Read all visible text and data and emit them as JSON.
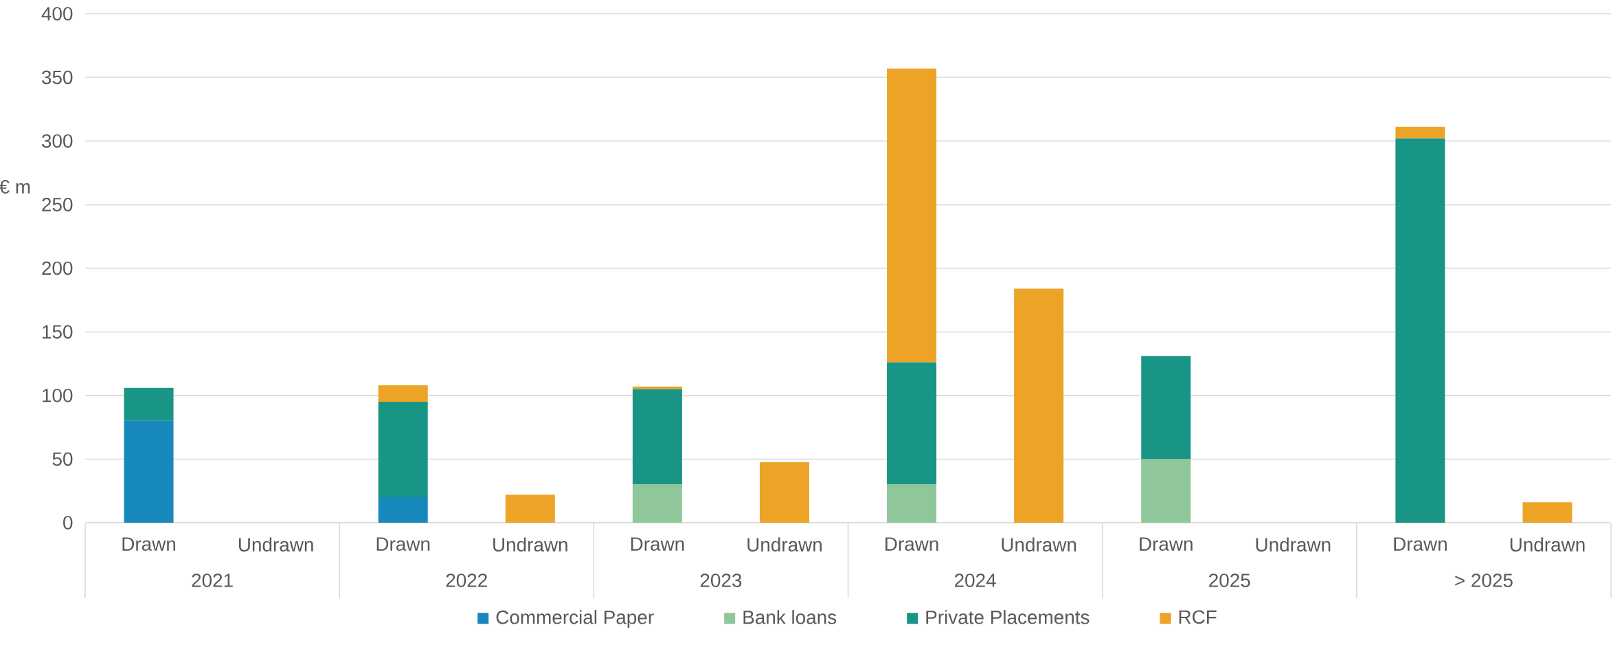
{
  "chart_data": {
    "type": "bar",
    "stacked": true,
    "ylabel": "€ m",
    "categories": [
      "Drawn",
      "Undrawn",
      "Drawn",
      "Undrawn",
      "Drawn",
      "Undrawn",
      "Drawn",
      "Undrawn",
      "Drawn",
      "Undrawn",
      "Drawn",
      "Undrawn"
    ],
    "annotations": [
      "2021",
      "2022",
      "2023",
      "2024",
      "2025",
      "> 2025"
    ],
    "series": [
      {
        "name": "Commercial Paper",
        "color": "#1788bb",
        "values": [
          80,
          null,
          20,
          null,
          null,
          null,
          null,
          null,
          null,
          null,
          null,
          null
        ]
      },
      {
        "name": "Bank loans",
        "color": "#8fc79a",
        "values": [
          null,
          null,
          null,
          null,
          30,
          null,
          30,
          null,
          50,
          null,
          null,
          null
        ]
      },
      {
        "name": "Private Placements",
        "color": "#189585",
        "values": [
          26,
          null,
          75,
          null,
          75,
          null,
          96,
          null,
          81,
          null,
          302,
          null
        ]
      },
      {
        "name": "RCF",
        "color": "#eca326",
        "values": [
          null,
          null,
          13,
          22,
          2,
          47.5,
          231,
          184,
          null,
          null,
          9,
          16
        ]
      }
    ],
    "ylim": [
      0,
      400
    ],
    "yticks": [
      0,
      50,
      100,
      150,
      200,
      250,
      300,
      350,
      400
    ],
    "grid": "y",
    "legend": "bottom"
  }
}
